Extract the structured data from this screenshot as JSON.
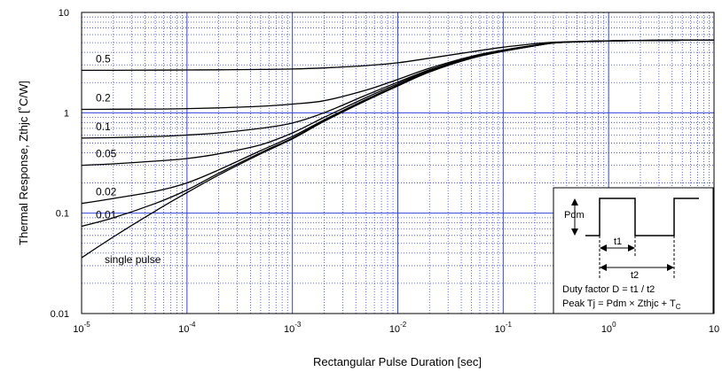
{
  "chart_data": {
    "type": "line",
    "title": "",
    "xlabel": "Rectangular Pulse Duration [sec]",
    "ylabel": "Thermal Response, Zthjc [˚C/W]",
    "xscale": "log",
    "yscale": "log",
    "xlim": [
      1e-05,
      10
    ],
    "ylim": [
      0.01,
      10
    ],
    "grid": true,
    "major_grid_color": "#3344dd",
    "minor_grid_color": "#3344dd",
    "curve_color": "#000000",
    "x_ticks": [
      {
        "base": "10",
        "exp": "-5"
      },
      {
        "base": "10",
        "exp": "-4"
      },
      {
        "base": "10",
        "exp": "-3"
      },
      {
        "base": "10",
        "exp": "-2"
      },
      {
        "base": "10",
        "exp": "-1"
      },
      {
        "base": "10",
        "exp": "0"
      },
      {
        "base": "10",
        "exp": ""
      }
    ],
    "y_ticks": [
      "0.01",
      "0.1",
      "1",
      "10"
    ],
    "series": [
      {
        "name": "single pulse",
        "x": [
          1e-05,
          2e-05,
          5e-05,
          0.0001,
          0.0002,
          0.0005,
          0.001,
          0.002,
          0.005,
          0.01,
          0.02,
          0.05,
          0.1,
          0.2,
          0.3,
          0.5,
          1,
          2,
          5,
          10
        ],
        "y": [
          0.036,
          0.058,
          0.105,
          0.16,
          0.24,
          0.39,
          0.55,
          0.82,
          1.32,
          1.85,
          2.55,
          3.5,
          4.1,
          4.65,
          4.95,
          5.1,
          5.2,
          5.25,
          5.28,
          5.3
        ]
      },
      {
        "name": "0.01",
        "x": [
          1e-05,
          2e-05,
          5e-05,
          0.0001,
          0.0002,
          0.0005,
          0.001,
          0.002,
          0.005,
          0.01,
          0.02,
          0.05,
          0.1,
          0.2,
          0.3,
          0.5,
          1,
          2,
          5,
          10
        ],
        "y": [
          0.074,
          0.09,
          0.125,
          0.17,
          0.25,
          0.4,
          0.56,
          0.83,
          1.33,
          1.86,
          2.56,
          3.5,
          4.1,
          4.65,
          4.95,
          5.1,
          5.2,
          5.25,
          5.28,
          5.3
        ]
      },
      {
        "name": "0.02",
        "x": [
          1e-05,
          2e-05,
          5e-05,
          0.0001,
          0.0002,
          0.0005,
          0.001,
          0.002,
          0.005,
          0.01,
          0.02,
          0.05,
          0.1,
          0.2,
          0.3,
          0.5,
          1,
          2,
          5,
          10
        ],
        "y": [
          0.125,
          0.14,
          0.165,
          0.2,
          0.27,
          0.42,
          0.58,
          0.85,
          1.36,
          1.89,
          2.58,
          3.52,
          4.12,
          4.66,
          4.95,
          5.1,
          5.2,
          5.25,
          5.28,
          5.3
        ]
      },
      {
        "name": "0.05",
        "x": [
          1e-05,
          2e-05,
          5e-05,
          0.0001,
          0.0002,
          0.0005,
          0.001,
          0.002,
          0.005,
          0.01,
          0.02,
          0.05,
          0.1,
          0.2,
          0.3,
          0.5,
          1,
          2,
          5,
          10
        ],
        "y": [
          0.3,
          0.31,
          0.33,
          0.35,
          0.39,
          0.48,
          0.63,
          0.9,
          1.42,
          1.95,
          2.62,
          3.55,
          4.15,
          4.68,
          4.96,
          5.1,
          5.2,
          5.25,
          5.28,
          5.3
        ]
      },
      {
        "name": "0.1",
        "x": [
          1e-05,
          2e-05,
          5e-05,
          0.0001,
          0.0002,
          0.0005,
          0.001,
          0.002,
          0.005,
          0.01,
          0.02,
          0.05,
          0.1,
          0.2,
          0.3,
          0.5,
          1,
          2,
          5,
          10
        ],
        "y": [
          0.56,
          0.565,
          0.58,
          0.6,
          0.63,
          0.7,
          0.79,
          1.0,
          1.5,
          2.02,
          2.68,
          3.6,
          4.18,
          4.7,
          4.97,
          5.1,
          5.2,
          5.25,
          5.28,
          5.3
        ]
      },
      {
        "name": "0.2",
        "x": [
          1e-05,
          2e-05,
          5e-05,
          0.0001,
          0.0002,
          0.0005,
          0.001,
          0.002,
          0.005,
          0.01,
          0.02,
          0.05,
          0.1,
          0.2,
          0.3,
          0.5,
          1,
          2,
          5,
          10
        ],
        "y": [
          1.08,
          1.085,
          1.09,
          1.1,
          1.12,
          1.16,
          1.22,
          1.32,
          1.68,
          2.15,
          2.78,
          3.65,
          4.22,
          4.72,
          4.98,
          5.1,
          5.2,
          5.25,
          5.28,
          5.3
        ]
      },
      {
        "name": "0.5",
        "x": [
          1e-05,
          2e-05,
          5e-05,
          0.0001,
          0.0002,
          0.0005,
          0.001,
          0.002,
          0.005,
          0.01,
          0.02,
          0.05,
          0.1,
          0.2,
          0.3,
          0.5,
          1,
          2,
          5,
          10
        ],
        "y": [
          2.65,
          2.65,
          2.66,
          2.67,
          2.68,
          2.7,
          2.73,
          2.8,
          2.95,
          3.15,
          3.5,
          4.05,
          4.5,
          4.88,
          5.05,
          5.12,
          5.2,
          5.25,
          5.28,
          5.3
        ]
      }
    ],
    "inset": {
      "pdm_label": "Pdm",
      "t1_label": "t1",
      "t2_label": "t2",
      "formula_line1": "Duty factor D = t1 / t2",
      "formula_line2_main": "Peak Tj = Pdm × Zthjc + T",
      "formula_line2_sub": "C"
    }
  }
}
